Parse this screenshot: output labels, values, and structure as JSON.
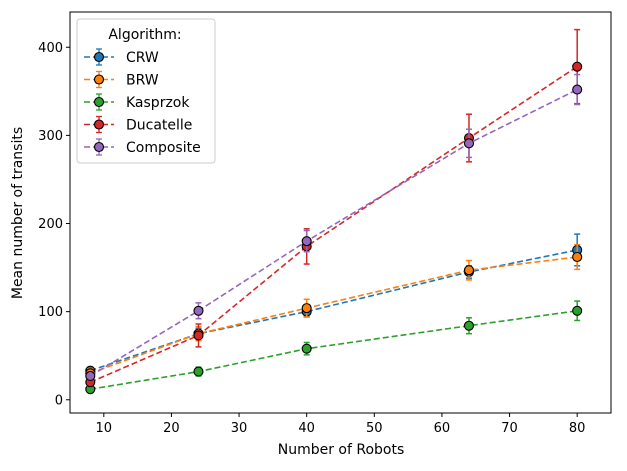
{
  "chart_data": {
    "type": "line",
    "title": "",
    "xlabel": "Number of Robots",
    "ylabel": "Mean number of transits",
    "xlim": [
      5,
      85
    ],
    "ylim": [
      -15,
      440
    ],
    "xticks": [
      10,
      20,
      30,
      40,
      50,
      60,
      70,
      80
    ],
    "yticks": [
      0,
      100,
      200,
      300,
      400
    ],
    "grid": false,
    "legend": {
      "title": "Algorithm:",
      "placement": "top-left"
    },
    "x": [
      8,
      24,
      40,
      64,
      80
    ],
    "series": [
      {
        "name": "CRW",
        "color": "#1f77b4",
        "values": [
          33,
          75,
          100,
          145,
          170
        ],
        "errors": [
          4,
          6,
          6,
          7,
          18
        ]
      },
      {
        "name": "BRW",
        "color": "#ff7f0e",
        "values": [
          30,
          75,
          104,
          147,
          162
        ],
        "errors": [
          5,
          8,
          10,
          11,
          14
        ]
      },
      {
        "name": "Kasprzok",
        "color": "#2ca02c",
        "values": [
          12,
          32,
          58,
          84,
          101
        ],
        "errors": [
          3,
          5,
          7,
          9,
          11
        ]
      },
      {
        "name": "Ducatelle",
        "color": "#d62728",
        "values": [
          20,
          73,
          174,
          297,
          378
        ],
        "errors": [
          4,
          13,
          20,
          27,
          42
        ]
      },
      {
        "name": "Composite",
        "color": "#9467bd",
        "values": [
          27,
          101,
          180,
          291,
          352
        ],
        "errors": [
          4,
          9,
          12,
          16,
          17
        ]
      }
    ]
  }
}
